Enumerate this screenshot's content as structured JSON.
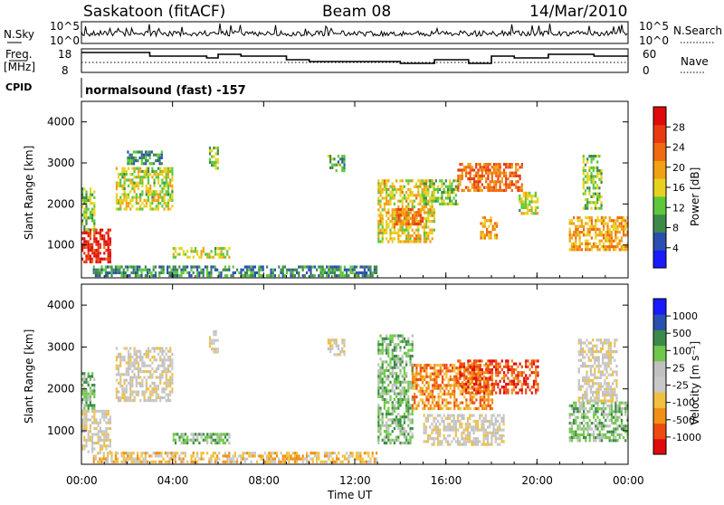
{
  "header": {
    "station": "Saskatoon (fitACF)",
    "beam": "Beam 08",
    "date": "14/Mar/2010"
  },
  "panels": {
    "nsky_label": "N.Sky",
    "nsearch_label": "N.Search",
    "freq_label_1": "Freq.",
    "freq_label_2": "[MHz]",
    "nave_label": "Nave",
    "cpid_label": "CPID",
    "cpid_value": "normalsound (fast) -157",
    "nsky_ticks": [
      "10^5",
      "10^0"
    ],
    "nsearch_ticks": [
      "10^5",
      "10^0"
    ],
    "freq_ticks": [
      "18",
      "8"
    ],
    "nave_ticks": [
      "60",
      "0"
    ]
  },
  "axes": {
    "ylabel": "Slant Range [km]",
    "xlabel": "Time UT",
    "xticks": [
      "00:00",
      "04:00",
      "08:00",
      "12:00",
      "16:00",
      "20:00",
      "00:00"
    ],
    "yticks": [
      "1000",
      "2000",
      "3000",
      "4000"
    ]
  },
  "colors": {
    "power": [
      "#1a1aff",
      "#2a4fb0",
      "#3c8a4a",
      "#5cc83a",
      "#e6d21e",
      "#f2a014",
      "#f06a10",
      "#e83a10",
      "#e00a0a"
    ],
    "velocity": [
      "#e00a0a",
      "#ee4a10",
      "#f09018",
      "#f0c040",
      "#c8c8c8",
      "#c0c0c0",
      "#70c84a",
      "#3c8a4a",
      "#2a4fb0",
      "#1a1aff"
    ]
  },
  "chart_data": [
    {
      "type": "heatmap",
      "name": "power",
      "ylabel": "Slant Range [km]",
      "xlim": [
        0,
        24
      ],
      "ylim": [
        200,
        4500
      ],
      "colorbar_label": "Power [dB]",
      "colorbar_ticks": [
        "4",
        "8",
        "12",
        "16",
        "20",
        "24",
        "28"
      ],
      "colorbar_range": [
        0,
        30
      ],
      "regions": [
        {
          "t0": 0.0,
          "t1": 1.3,
          "r0": 600,
          "r1": 1400,
          "v": 27
        },
        {
          "t0": 0.0,
          "t1": 0.6,
          "r0": 1400,
          "r1": 2400,
          "v": 12
        },
        {
          "t0": 1.5,
          "t1": 4.0,
          "r0": 1900,
          "r1": 2900,
          "v": 14
        },
        {
          "t0": 2.0,
          "t1": 3.5,
          "r0": 3000,
          "r1": 3300,
          "v": 8
        },
        {
          "t0": 5.6,
          "t1": 6.0,
          "r0": 2900,
          "r1": 3400,
          "v": 12
        },
        {
          "t0": 4.0,
          "t1": 6.5,
          "r0": 700,
          "r1": 950,
          "v": 14
        },
        {
          "t0": 0.5,
          "t1": 13.0,
          "r0": 250,
          "r1": 500,
          "v": 8
        },
        {
          "t0": 10.8,
          "t1": 11.5,
          "r0": 2800,
          "r1": 3200,
          "v": 10
        },
        {
          "t0": 13.0,
          "t1": 15.5,
          "r0": 1100,
          "r1": 2600,
          "v": 16
        },
        {
          "t0": 13.8,
          "t1": 15.0,
          "r0": 1500,
          "r1": 1900,
          "v": 22
        },
        {
          "t0": 15.0,
          "t1": 16.5,
          "r0": 2000,
          "r1": 2600,
          "v": 12
        },
        {
          "t0": 16.5,
          "t1": 19.3,
          "r0": 2300,
          "r1": 3000,
          "v": 22
        },
        {
          "t0": 17.5,
          "t1": 18.2,
          "r0": 1200,
          "r1": 1700,
          "v": 18
        },
        {
          "t0": 19.2,
          "t1": 20.0,
          "r0": 1800,
          "r1": 2300,
          "v": 14
        },
        {
          "t0": 21.4,
          "t1": 24.0,
          "r0": 900,
          "r1": 1700,
          "v": 18
        },
        {
          "t0": 22.0,
          "t1": 22.8,
          "r0": 1900,
          "r1": 3200,
          "v": 12
        }
      ]
    },
    {
      "type": "heatmap",
      "name": "velocity",
      "ylabel": "Slant Range [km]",
      "xlabel": "Time UT",
      "xlim": [
        0,
        24
      ],
      "ylim": [
        200,
        4500
      ],
      "colorbar_label": "Velocity [m s⁻¹]",
      "colorbar_ticks": [
        "-1000",
        "-500",
        "-100",
        "-25",
        "25",
        "100",
        "500",
        "1000"
      ],
      "regions": [
        {
          "t0": 0.0,
          "t1": 1.3,
          "r0": 500,
          "r1": 1500,
          "v": 4
        },
        {
          "t0": 0.0,
          "t1": 0.6,
          "r0": 1500,
          "r1": 2400,
          "v": 6
        },
        {
          "t0": 1.5,
          "t1": 4.0,
          "r0": 1700,
          "r1": 3000,
          "v": 4
        },
        {
          "t0": 4.0,
          "t1": 6.5,
          "r0": 700,
          "r1": 950,
          "v": 6
        },
        {
          "t0": 5.6,
          "t1": 6.0,
          "r0": 2900,
          "r1": 3400,
          "v": 4
        },
        {
          "t0": 0.5,
          "t1": 13.0,
          "r0": 250,
          "r1": 500,
          "v": 3
        },
        {
          "t0": 10.8,
          "t1": 11.5,
          "r0": 2800,
          "r1": 3200,
          "v": 4
        },
        {
          "t0": 13.0,
          "t1": 14.5,
          "r0": 700,
          "r1": 3300,
          "v": 6
        },
        {
          "t0": 14.5,
          "t1": 18.0,
          "r0": 1500,
          "r1": 2600,
          "v": 2
        },
        {
          "t0": 16.5,
          "t1": 20.0,
          "r0": 1900,
          "r1": 2700,
          "v": 1
        },
        {
          "t0": 15.0,
          "t1": 18.5,
          "r0": 700,
          "r1": 1400,
          "v": 4
        },
        {
          "t0": 21.4,
          "t1": 24.0,
          "r0": 800,
          "r1": 1700,
          "v": 6
        },
        {
          "t0": 21.8,
          "t1": 23.5,
          "r0": 1700,
          "r1": 3200,
          "v": 4
        }
      ]
    }
  ]
}
